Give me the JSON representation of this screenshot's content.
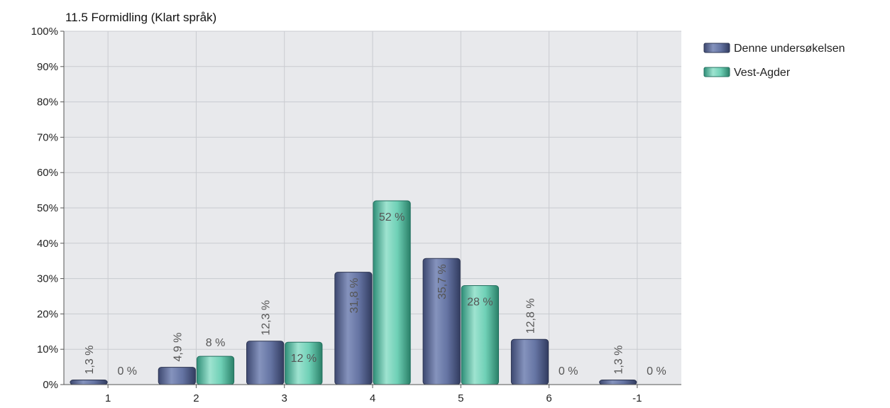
{
  "chart_data": {
    "type": "bar",
    "title": "11.5 Formidling (Klart språk)",
    "categories": [
      "1",
      "2",
      "3",
      "4",
      "5",
      "6",
      "-1"
    ],
    "series": [
      {
        "name": "Denne undersøkelsen",
        "values": [
          1.3,
          4.9,
          12.3,
          31.8,
          35.7,
          12.8,
          1.3
        ],
        "labels": [
          "1,3 %",
          "4,9 %",
          "12,3 %",
          "31,8 %",
          "35,7 %",
          "12,8 %",
          "1,3 %"
        ],
        "color": "#5b6a99"
      },
      {
        "name": "Vest-Agder",
        "values": [
          0,
          8,
          12,
          52,
          28,
          0,
          0
        ],
        "labels": [
          "0 %",
          "8 %",
          "12 %",
          "52 %",
          "28 %",
          "0 %",
          "0 %"
        ],
        "color": "#5cc5aa"
      }
    ],
    "ylim": [
      0,
      100
    ],
    "yticks": [
      "0%",
      "10%",
      "20%",
      "30%",
      "40%",
      "50%",
      "60%",
      "70%",
      "80%",
      "90%",
      "100%"
    ],
    "grid": true,
    "legend_position": "top-right",
    "plot_background": "#e8e9ec"
  }
}
